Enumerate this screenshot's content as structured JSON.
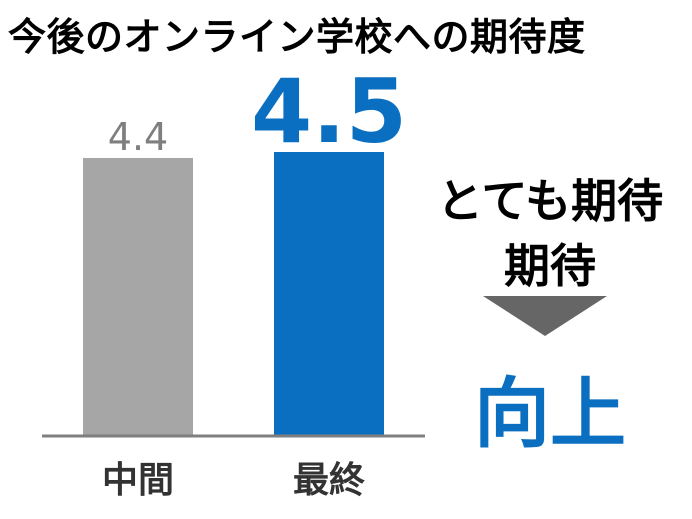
{
  "colors": {
    "gray_bar": "#a6a6a6",
    "blue_bar": "#0b6fc1",
    "gray_label": "#7f7f7f",
    "axis": "#7f7f7f",
    "arrow": "#666666",
    "result": "#0b6fc1"
  },
  "chart_data": {
    "type": "bar",
    "title": "今後のオンライン学校への期待度",
    "categories": [
      "中間",
      "最終"
    ],
    "values": [
      4.4,
      4.5
    ],
    "value_labels": [
      "4.4",
      "4.5"
    ],
    "xlabel": "",
    "ylabel": "",
    "grid": false,
    "legend": "none"
  },
  "annotation": {
    "line1": "とても期待",
    "line2": "期待",
    "arrow_icon": "down-triangle-icon",
    "result": "向上"
  }
}
